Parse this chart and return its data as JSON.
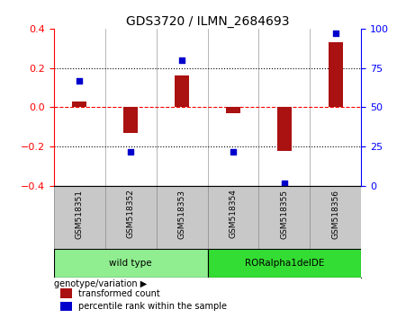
{
  "title": "GDS3720 / ILMN_2684693",
  "samples": [
    "GSM518351",
    "GSM518352",
    "GSM518353",
    "GSM518354",
    "GSM518355",
    "GSM518356"
  ],
  "transformed_count": [
    0.03,
    -0.13,
    0.16,
    -0.03,
    -0.22,
    0.33
  ],
  "percentile_rank": [
    67,
    22,
    80,
    22,
    2,
    97
  ],
  "groups": [
    {
      "label": "wild type",
      "indices": [
        0,
        1,
        2
      ],
      "color": "#90EE90"
    },
    {
      "label": "RORalpha1delDE",
      "indices": [
        3,
        4,
        5
      ],
      "color": "#33DD33"
    }
  ],
  "bar_color": "#AA1111",
  "point_color": "#0000CC",
  "ylim_left": [
    -0.4,
    0.4
  ],
  "ylim_right": [
    0,
    100
  ],
  "yticks_left": [
    -0.4,
    -0.2,
    0.0,
    0.2,
    0.4
  ],
  "yticks_right": [
    0,
    25,
    50,
    75,
    100
  ],
  "dotted_lines": [
    -0.2,
    0.2
  ],
  "background_color": "#ffffff",
  "bar_width": 0.4,
  "legend_labels": [
    "transformed count",
    "percentile rank within the sample"
  ],
  "genotype_label": "genotype/variation"
}
